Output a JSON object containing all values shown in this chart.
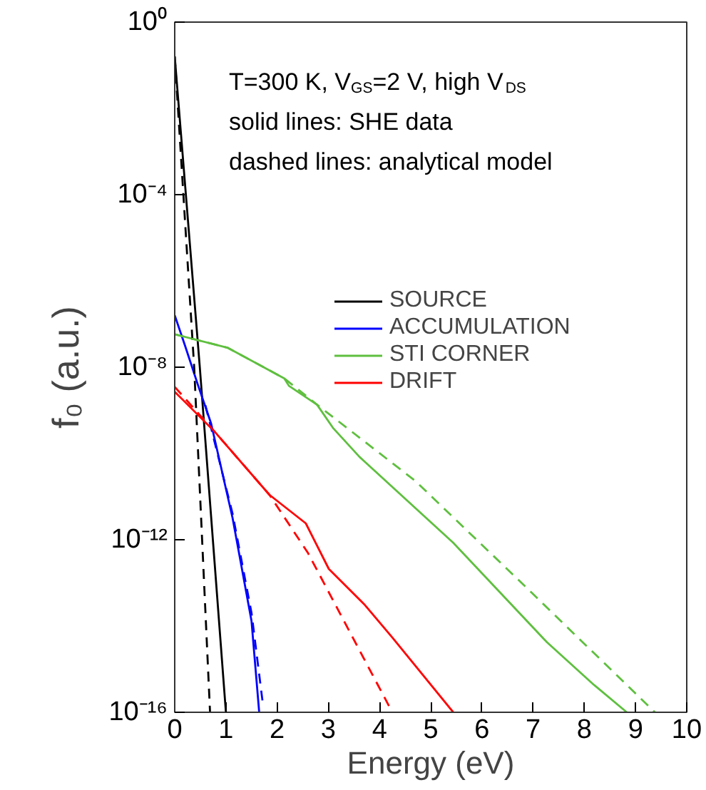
{
  "chart_data": {
    "type": "line",
    "xlabel": "Energy (eV)",
    "ylabel": "f₀ (a.u.)",
    "annotations": [
      "T=300 K, V$_{GS}$=2 V, high V$_{DS}$",
      "solid lines: SHE data",
      "dashed lines: analytical model"
    ],
    "log": "y",
    "xlim": [
      0,
      10
    ],
    "ylim": [
      1e-16,
      1
    ],
    "xticks": [
      0,
      1,
      2,
      3,
      4,
      5,
      6,
      7,
      8,
      9,
      10
    ],
    "yticks": [
      {
        "value": 1e-16,
        "label": "10⁻¹⁶"
      },
      {
        "value": 1e-12,
        "label": "10⁻¹²"
      },
      {
        "value": 1e-08,
        "label": "10⁻⁸"
      },
      {
        "value": 0.0001,
        "label": "10⁻⁴"
      },
      {
        "value": 1,
        "label": "10⁰"
      }
    ],
    "grid": false,
    "legend": "right",
    "marker": "none",
    "series": [
      {
        "name": "SOURCE",
        "color": "#000000",
        "line_style": "solid",
        "x": [
          0,
          0.49,
          1.0
        ],
        "values": [
          0.16,
          1e-08,
          1e-16
        ]
      },
      {
        "name": "ACCUMULATION",
        "color": "#0000ff",
        "line_style": "solid",
        "x": [
          0,
          0.2,
          0.45,
          0.71,
          1.13,
          1.5,
          1.65
        ],
        "values": [
          1.6e-07,
          3.2e-08,
          4e-09,
          5e-10,
          3.2e-12,
          1.3e-14,
          1e-16
        ]
      },
      {
        "name": "STI CORNER",
        "color": "#5fbf3f",
        "line_style": "solid",
        "x": [
          0,
          1.04,
          2.14,
          2.23,
          2.78,
          3.1,
          3.61,
          5.44,
          7.27,
          8.19,
          8.83
        ],
        "values": [
          5.8e-08,
          2.8e-08,
          5.5e-09,
          3.7e-09,
          1.35e-09,
          3.8e-10,
          8.3e-11,
          8.5e-13,
          4.2e-15,
          4.3e-16,
          1e-16
        ]
      },
      {
        "name": "DRIFT",
        "color": "#ff0000",
        "line_style": "solid",
        "x": [
          0,
          0.77,
          1.85,
          2.56,
          3.01,
          3.7,
          4.25,
          5.44
        ],
        "values": [
          2.7e-09,
          3.3e-10,
          1.1e-11,
          2.4e-12,
          2.1e-13,
          3.2e-14,
          5.4e-15,
          1e-16
        ]
      },
      {
        "color": "#000000",
        "line_style": "dashed",
        "x": [
          0,
          0.38,
          0.69
        ],
        "values": [
          0.16,
          1e-08,
          1e-16
        ]
      },
      {
        "color": "#0000ff",
        "line_style": "dashed",
        "x": [
          0.6,
          1.13,
          1.5,
          1.73
        ],
        "values": [
          1.3e-09,
          4e-12,
          2e-14,
          1.3e-16
        ]
      },
      {
        "color": "#5fbf3f",
        "line_style": "dashed",
        "x": [
          0,
          1.04,
          2.14,
          2.78,
          4.7,
          6.72,
          9.38
        ],
        "values": [
          5.8e-08,
          2.8e-08,
          5.5e-09,
          1.35e-09,
          2.3e-11,
          1.15e-13,
          1e-16
        ]
      },
      {
        "color": "#ff0000",
        "line_style": "dashed",
        "x": [
          0,
          0.77,
          1.85,
          2.6,
          4.25
        ],
        "values": [
          3.5e-09,
          3.3e-10,
          1.1e-11,
          5e-13,
          1e-16
        ]
      }
    ]
  }
}
